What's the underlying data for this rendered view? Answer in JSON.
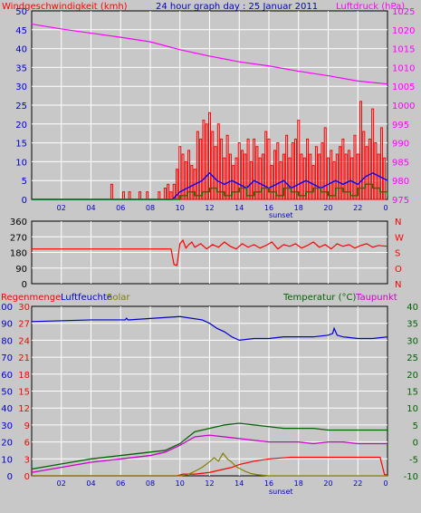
{
  "colors": {
    "wind": "#ff0000",
    "gust": "#0000ff",
    "pressure": "#ff00ff",
    "green": "#008000",
    "olive": "#808000",
    "blue": "#0000cc",
    "darkgreen": "#006400",
    "magenta": "#cc00cc",
    "grid": "#ffffff",
    "bg": "#c8c8c8"
  },
  "chart_data": [
    {
      "type": "bar",
      "title": "24 hour graph day : 25 Januar 2011",
      "left_label": "Windgeschwindigkeit (kmh)",
      "right_label": "Luftdruck (hPa)",
      "x_ticks": [
        "02",
        "04",
        "06",
        "08",
        "10",
        "12",
        "14",
        "16",
        "18",
        "20",
        "22",
        "0"
      ],
      "x_note": "sunset",
      "y_left": {
        "min": 0,
        "max": 50,
        "ticks": [
          "0",
          "5",
          "10",
          "15",
          "20",
          "25",
          "30",
          "35",
          "40",
          "45",
          "50"
        ]
      },
      "y_right": {
        "min": 975,
        "max": 1025,
        "ticks": [
          "975",
          "980",
          "985",
          "990",
          "995",
          "1000",
          "1005",
          "1010",
          "1015",
          "1020",
          "1025"
        ]
      },
      "series": [
        {
          "kind": "wind_gust_bars",
          "hours": [
            5.4,
            6.2,
            6.6,
            7.3,
            7.8,
            8.6,
            9.0,
            9.2,
            9.4,
            9.6,
            9.8,
            10.0,
            10.2,
            10.4,
            10.6,
            10.8,
            11.0,
            11.2,
            11.4,
            11.6,
            11.8,
            12.0,
            12.2,
            12.4,
            12.6,
            12.8,
            13.0,
            13.2,
            13.4,
            13.6,
            13.8,
            14.0,
            14.2,
            14.4,
            14.6,
            14.8,
            15.0,
            15.2,
            15.4,
            15.6,
            15.8,
            16.0,
            16.2,
            16.4,
            16.6,
            16.8,
            17.0,
            17.2,
            17.4,
            17.6,
            17.8,
            18.0,
            18.2,
            18.4,
            18.6,
            18.8,
            19.0,
            19.2,
            19.4,
            19.6,
            19.8,
            20.0,
            20.2,
            20.4,
            20.6,
            20.8,
            21.0,
            21.2,
            21.4,
            21.6,
            21.8,
            22.0,
            22.2,
            22.4,
            22.6,
            22.8,
            23.0,
            23.2,
            23.4,
            23.6,
            23.8
          ],
          "values": [
            4,
            2,
            2,
            2,
            2,
            2,
            3,
            4,
            2,
            4,
            8,
            14,
            12,
            10,
            13,
            9,
            8,
            18,
            16,
            21,
            20,
            23,
            18,
            14,
            20,
            16,
            11,
            17,
            12,
            9,
            11,
            15,
            13,
            12,
            16,
            10,
            16,
            14,
            11,
            12,
            18,
            16,
            9,
            13,
            15,
            10,
            12,
            17,
            11,
            15,
            16,
            21,
            12,
            11,
            16,
            12,
            9,
            14,
            12,
            15,
            19,
            11,
            13,
            10,
            12,
            14,
            16,
            12,
            13,
            11,
            17,
            12,
            26,
            18,
            14,
            16,
            24,
            15,
            12,
            19,
            11
          ]
        },
        {
          "name": "wind_avg",
          "kind": "line",
          "hours": [
            0,
            9.5,
            10,
            10.5,
            11,
            11.5,
            12,
            12.5,
            13,
            13.5,
            14,
            14.5,
            15,
            15.5,
            16,
            16.5,
            17,
            17.5,
            18,
            18.5,
            19,
            19.5,
            20,
            20.5,
            21,
            21.5,
            22,
            22.5,
            23,
            23.5,
            24
          ],
          "values": [
            0,
            0,
            2,
            3,
            4,
            5,
            7,
            5,
            4,
            5,
            4,
            3,
            5,
            4,
            3,
            4,
            5,
            3,
            4,
            5,
            4,
            3,
            4,
            5,
            4,
            5,
            4,
            6,
            7,
            6,
            5
          ]
        },
        {
          "name": "wind_green",
          "kind": "line",
          "hours": [
            0,
            9.8,
            10,
            10.5,
            11,
            11.5,
            12,
            12.5,
            13,
            13.5,
            14,
            14.5,
            15,
            15.5,
            16,
            16.5,
            17,
            17.5,
            18,
            18.5,
            19,
            19.5,
            20,
            20.5,
            21,
            21.5,
            22,
            22.5,
            23,
            23.5,
            24
          ],
          "values": [
            0,
            0,
            1,
            2,
            1,
            2,
            3,
            2,
            1,
            2,
            3,
            1,
            2,
            3,
            2,
            1,
            3,
            2,
            1,
            2,
            3,
            2,
            1,
            3,
            2,
            1,
            3,
            4,
            3,
            2,
            1
          ]
        },
        {
          "name": "pressure",
          "kind": "line",
          "axis": "right",
          "hours": [
            0,
            2,
            4,
            6,
            8,
            10,
            12,
            14,
            16,
            18,
            20,
            22,
            24
          ],
          "values": [
            1021.5,
            1020.2,
            1019.1,
            1018.0,
            1016.8,
            1014.7,
            1013.0,
            1011.5,
            1010.4,
            1009.0,
            1007.8,
            1006.4,
            1005.6
          ]
        }
      ]
    },
    {
      "type": "line",
      "y_left": {
        "min": 0,
        "max": 360,
        "ticks": [
          "0",
          "90",
          "180",
          "270",
          "360"
        ]
      },
      "y_right_labels": [
        "N",
        "O",
        "S",
        "W",
        "N"
      ],
      "series": [
        {
          "name": "wind_direction",
          "hours": [
            0,
            9.4,
            9.6,
            9.8,
            10.0,
            10.2,
            10.4,
            10.6,
            10.8,
            11.0,
            11.4,
            11.8,
            12.2,
            12.6,
            13.0,
            13.4,
            13.8,
            14.2,
            14.6,
            15.0,
            15.4,
            15.8,
            16.2,
            16.6,
            17.0,
            17.4,
            17.8,
            18.2,
            18.6,
            19.0,
            19.4,
            19.8,
            20.2,
            20.6,
            21.0,
            21.4,
            21.8,
            22.2,
            22.6,
            23.0,
            23.4,
            24
          ],
          "values": [
            200,
            200,
            110,
            105,
            230,
            250,
            205,
            225,
            240,
            210,
            230,
            200,
            225,
            210,
            240,
            215,
            200,
            230,
            210,
            225,
            205,
            220,
            240,
            200,
            225,
            215,
            230,
            205,
            220,
            240,
            210,
            225,
            200,
            230,
            215,
            225,
            205,
            220,
            230,
            210,
            220,
            215
          ]
        }
      ]
    },
    {
      "type": "line",
      "labels": {
        "rain": "Regenmenge",
        "humidity": "Luftfeuchte",
        "solar": "Solar",
        "temperature": "Temperatur (°C)",
        "dewpoint": "Taupunkt"
      },
      "x_ticks": [
        "02",
        "04",
        "06",
        "08",
        "10",
        "12",
        "14",
        "16",
        "18",
        "20",
        "22",
        "0"
      ],
      "x_note": "sunset",
      "y_left_humidity": {
        "min": 0,
        "max": 100,
        "ticks": [
          "0",
          "10",
          "20",
          "30",
          "40",
          "50",
          "60",
          "70",
          "80",
          "90",
          "100"
        ]
      },
      "y_left_rain": {
        "min": 0,
        "max": 30,
        "ticks": [
          "0",
          "3",
          "6",
          "9",
          "12",
          "15",
          "18",
          "21",
          "24",
          "27",
          "30"
        ]
      },
      "y_right": {
        "min": -10,
        "max": 40,
        "ticks": [
          "-10",
          "-5",
          "0",
          "5",
          "10",
          "15",
          "20",
          "25",
          "30",
          "35",
          "40"
        ]
      },
      "series": [
        {
          "name": "humidity",
          "axis": "humidity",
          "hours": [
            0,
            4,
            6.3,
            6.4,
            6.5,
            10,
            11.5,
            12.0,
            12.5,
            13.0,
            13.5,
            14.0,
            15.0,
            16.0,
            17.0,
            18.0,
            19.0,
            20.0,
            20.3,
            20.4,
            20.6,
            21.0,
            22.0,
            23.0,
            24.0
          ],
          "values": [
            91,
            92,
            92,
            93,
            92,
            94,
            92,
            90,
            87,
            85,
            82,
            80,
            81,
            81,
            82,
            82,
            82,
            83,
            84,
            87,
            83,
            82,
            81,
            81,
            82
          ]
        },
        {
          "name": "temperature",
          "axis": "right",
          "hours": [
            0,
            2,
            4,
            6,
            8,
            9,
            10,
            11,
            12,
            13,
            14,
            15,
            16,
            17,
            18,
            19,
            20,
            21,
            22,
            23,
            24
          ],
          "values": [
            -8,
            -6.5,
            -5,
            -4,
            -3,
            -2.5,
            -0.5,
            3,
            4,
            5,
            5.5,
            5,
            4.5,
            4,
            4,
            4,
            3.5,
            3.5,
            3.5,
            3.5,
            3.5
          ]
        },
        {
          "name": "dewpoint",
          "axis": "right",
          "hours": [
            0,
            2,
            4,
            6,
            8,
            9,
            10,
            11,
            12,
            13,
            14,
            15,
            16,
            17,
            18,
            19,
            20,
            21,
            22,
            23,
            24
          ],
          "values": [
            -9,
            -7.5,
            -6,
            -5,
            -4,
            -3,
            -1,
            1.5,
            2,
            1.5,
            1,
            0.5,
            0,
            0,
            0,
            -0.5,
            0,
            0,
            -0.5,
            -0.5,
            -0.5
          ]
        },
        {
          "name": "rain",
          "axis": "rain",
          "hours": [
            0,
            9.8,
            10.2,
            11.0,
            12.0,
            12.5,
            13.0,
            13.5,
            14.0,
            15.0,
            16.0,
            17.0,
            17.5,
            18.0,
            20.0,
            22.0,
            23.5,
            23.8,
            24.0
          ],
          "values": [
            0,
            0,
            0.3,
            0.3,
            0.6,
            0.9,
            1.2,
            1.5,
            2.0,
            2.6,
            3.0,
            3.2,
            3.3,
            3.3,
            3.3,
            3.3,
            3.3,
            0.2,
            0.2
          ]
        },
        {
          "name": "solar",
          "axis": "rain",
          "hours": [
            0,
            10.0,
            10.5,
            11.0,
            11.5,
            12.0,
            12.3,
            12.6,
            12.9,
            13.2,
            13.5,
            13.8,
            14.1,
            14.4,
            14.8,
            15.2,
            15.6,
            16.0,
            24.0
          ],
          "values": [
            0,
            0,
            0.2,
            0.8,
            1.5,
            2.5,
            3.2,
            2.6,
            4.0,
            3.0,
            2.4,
            1.6,
            1.2,
            0.8,
            0.4,
            0.2,
            0.1,
            0,
            0
          ]
        }
      ]
    }
  ]
}
